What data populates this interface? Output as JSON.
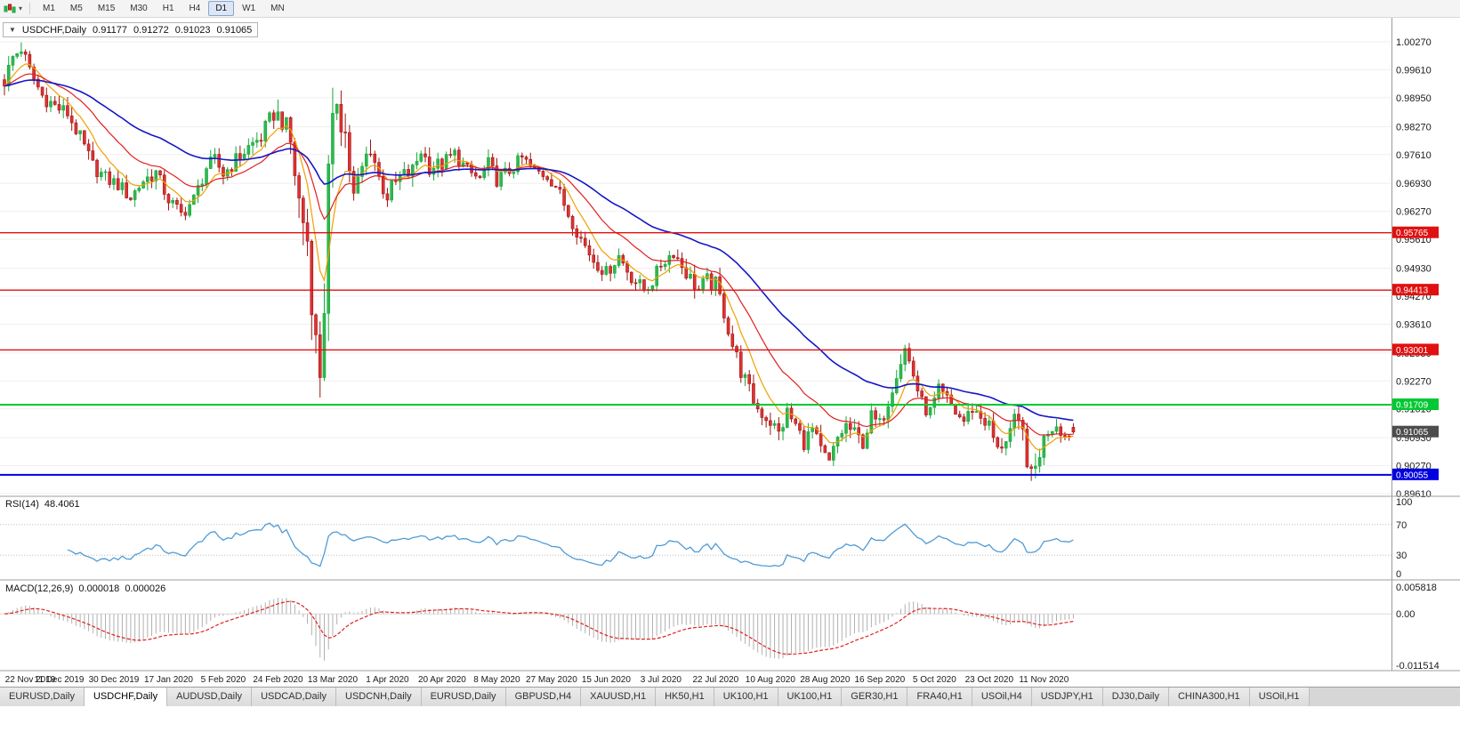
{
  "toolbar": {
    "timeframes": [
      {
        "label": "M1",
        "active": false
      },
      {
        "label": "M5",
        "active": false
      },
      {
        "label": "M15",
        "active": false
      },
      {
        "label": "M30",
        "active": false
      },
      {
        "label": "H1",
        "active": false
      },
      {
        "label": "H4",
        "active": false
      },
      {
        "label": "D1",
        "active": true
      },
      {
        "label": "W1",
        "active": false
      },
      {
        "label": "MN",
        "active": false
      }
    ]
  },
  "chart_data": {
    "type": "candlestick",
    "title": "USDCHF,Daily",
    "symbol": "USDCHF",
    "timeframe": "Daily",
    "last_ohlc": {
      "open": "0.91177",
      "high": "0.91272",
      "low": "0.91023",
      "close": "0.91065"
    },
    "bars": 255,
    "colors": {
      "up_stroke": "#18a83c",
      "up_fill": "#2eb84e",
      "down_stroke": "#9e1414",
      "down_fill": "#e03232"
    },
    "close_path_anchors": [
      [
        0,
        0.9935
      ],
      [
        2,
        0.999
      ],
      [
        4,
        1.0012
      ],
      [
        6,
        0.9958
      ],
      [
        9,
        0.99
      ],
      [
        12,
        0.9875
      ],
      [
        15,
        0.9858
      ],
      [
        18,
        0.98
      ],
      [
        21,
        0.9735
      ],
      [
        24,
        0.9705
      ],
      [
        27,
        0.969
      ],
      [
        30,
        0.966
      ],
      [
        33,
        0.97
      ],
      [
        36,
        0.9718
      ],
      [
        39,
        0.9655
      ],
      [
        42,
        0.962
      ],
      [
        45,
        0.9655
      ],
      [
        48,
        0.973
      ],
      [
        50,
        0.9748
      ],
      [
        52,
        0.9715
      ],
      [
        55,
        0.9748
      ],
      [
        58,
        0.9778
      ],
      [
        61,
        0.9802
      ],
      [
        64,
        0.9858
      ],
      [
        66,
        0.9845
      ],
      [
        68,
        0.9788
      ],
      [
        70,
        0.965
      ],
      [
        72,
        0.956
      ],
      [
        74,
        0.931
      ],
      [
        75,
        0.9255
      ],
      [
        76,
        0.942
      ],
      [
        77,
        0.97
      ],
      [
        79,
        0.9905
      ],
      [
        81,
        0.981
      ],
      [
        83,
        0.9655
      ],
      [
        85,
        0.9725
      ],
      [
        87,
        0.9785
      ],
      [
        89,
        0.9705
      ],
      [
        91,
        0.9665
      ],
      [
        94,
        0.9705
      ],
      [
        97,
        0.9722
      ],
      [
        99,
        0.9772
      ],
      [
        101,
        0.9732
      ],
      [
        104,
        0.9738
      ],
      [
        107,
        0.9762
      ],
      [
        110,
        0.9722
      ],
      [
        113,
        0.9702
      ],
      [
        115,
        0.9738
      ],
      [
        117,
        0.9702
      ],
      [
        120,
        0.9722
      ],
      [
        123,
        0.9752
      ],
      [
        126,
        0.9722
      ],
      [
        129,
        0.9712
      ],
      [
        131,
        0.9688
      ],
      [
        134,
        0.9622
      ],
      [
        137,
        0.9562
      ],
      [
        140,
        0.9512
      ],
      [
        143,
        0.9482
      ],
      [
        146,
        0.9522
      ],
      [
        149,
        0.9472
      ],
      [
        152,
        0.9442
      ],
      [
        154,
        0.9462
      ],
      [
        156,
        0.9502
      ],
      [
        159,
        0.9532
      ],
      [
        162,
        0.9482
      ],
      [
        165,
        0.9442
      ],
      [
        167,
        0.9462
      ],
      [
        169,
        0.9452
      ],
      [
        171,
        0.9392
      ],
      [
        173,
        0.9312
      ],
      [
        175,
        0.9252
      ],
      [
        177,
        0.9202
      ],
      [
        179,
        0.9162
      ],
      [
        182,
        0.9132
      ],
      [
        184,
        0.9102
      ],
      [
        186,
        0.9152
      ],
      [
        188,
        0.9122
      ],
      [
        190,
        0.9082
      ],
      [
        192,
        0.9112
      ],
      [
        194,
        0.9062
      ],
      [
        196,
        0.9032
      ],
      [
        198,
        0.9092
      ],
      [
        200,
        0.9122
      ],
      [
        202,
        0.9102
      ],
      [
        204,
        0.9082
      ],
      [
        206,
        0.9142
      ],
      [
        208,
        0.9122
      ],
      [
        210,
        0.9182
      ],
      [
        212,
        0.9252
      ],
      [
        214,
        0.9302
      ],
      [
        216,
        0.9242
      ],
      [
        218,
        0.9172
      ],
      [
        220,
        0.9152
      ],
      [
        222,
        0.9202
      ],
      [
        224,
        0.9182
      ],
      [
        226,
        0.9152
      ],
      [
        228,
        0.9132
      ],
      [
        230,
        0.9162
      ],
      [
        232,
        0.9142
      ],
      [
        234,
        0.9122
      ],
      [
        236,
        0.9062
      ],
      [
        238,
        0.9092
      ],
      [
        240,
        0.9132
      ],
      [
        242,
        0.9102
      ],
      [
        244,
        0.8992
      ],
      [
        245,
        0.9022
      ],
      [
        246,
        0.9062
      ],
      [
        248,
        0.9112
      ],
      [
        250,
        0.9127
      ],
      [
        252,
        0.9097
      ],
      [
        254,
        0.91065
      ]
    ],
    "volatility_anchors": [
      [
        0,
        0.0026
      ],
      [
        20,
        0.0024
      ],
      [
        50,
        0.0022
      ],
      [
        64,
        0.003
      ],
      [
        68,
        0.0048
      ],
      [
        72,
        0.0065
      ],
      [
        76,
        0.0085
      ],
      [
        80,
        0.007
      ],
      [
        84,
        0.0048
      ],
      [
        90,
        0.0034
      ],
      [
        100,
        0.0026
      ],
      [
        120,
        0.0022
      ],
      [
        140,
        0.0022
      ],
      [
        160,
        0.0022
      ],
      [
        170,
        0.003
      ],
      [
        178,
        0.0028
      ],
      [
        190,
        0.0024
      ],
      [
        205,
        0.0024
      ],
      [
        214,
        0.003
      ],
      [
        225,
        0.0022
      ],
      [
        240,
        0.0024
      ],
      [
        244,
        0.004
      ],
      [
        248,
        0.0026
      ],
      [
        254,
        0.0016
      ]
    ],
    "moving_averages": [
      {
        "period": 8,
        "color": "#f0a000"
      },
      {
        "period": 21,
        "color": "#e02020"
      },
      {
        "period": 50,
        "color": "#1616c8"
      }
    ],
    "price_tick_labels": [
      "1.00270",
      "0.99610",
      "0.98950",
      "0.98270",
      "0.97610",
      "0.96930",
      "0.96270",
      "0.95610",
      "0.94930",
      "0.94270",
      "0.93610",
      "0.92930",
      "0.92270",
      "0.91610",
      "0.90930",
      "0.90270",
      "0.89610"
    ],
    "time_labels": [
      {
        "label": "22 Nov 2019",
        "i": 0
      },
      {
        "label": "11 Dec 2019",
        "i": 13
      },
      {
        "label": "30 Dec 2019",
        "i": 26
      },
      {
        "label": "17 Jan 2020",
        "i": 39
      },
      {
        "label": "5 Feb 2020",
        "i": 52
      },
      {
        "label": "24 Feb 2020",
        "i": 65
      },
      {
        "label": "13 Mar 2020",
        "i": 78
      },
      {
        "label": "1 Apr 2020",
        "i": 91
      },
      {
        "label": "20 Apr 2020",
        "i": 104
      },
      {
        "label": "8 May 2020",
        "i": 117
      },
      {
        "label": "27 May 2020",
        "i": 130
      },
      {
        "label": "15 Jun 2020",
        "i": 143
      },
      {
        "label": "3 Jul 2020",
        "i": 156
      },
      {
        "label": "22 Jul 2020",
        "i": 169
      },
      {
        "label": "10 Aug 2020",
        "i": 182
      },
      {
        "label": "28 Aug 2020",
        "i": 195
      },
      {
        "label": "16 Sep 2020",
        "i": 208
      },
      {
        "label": "5 Oct 2020",
        "i": 221
      },
      {
        "label": "23 Oct 2020",
        "i": 234
      },
      {
        "label": "11 Nov 2020",
        "i": 247
      }
    ],
    "horizontal_lines": [
      {
        "label": "0.95765",
        "price": 0.95765,
        "color": "#e01010",
        "width": 1.4
      },
      {
        "label": "0.94413",
        "price": 0.94413,
        "color": "#e01010",
        "width": 1.4
      },
      {
        "label": "0.93001",
        "price": 0.93001,
        "color": "#e01010",
        "width": 1.4
      },
      {
        "label": "0.91709",
        "price": 0.91709,
        "color": "#00c832",
        "width": 2
      },
      {
        "label": "0.90055",
        "price": 0.90055,
        "color": "#0000e0",
        "width": 2
      }
    ],
    "current_price_tag": {
      "label": "0.91065",
      "price": 0.91065,
      "color": "#4d4d4d"
    },
    "rsi": {
      "name": "RSI(14)",
      "value": "48.4061",
      "line_color": "#4f9bd6",
      "levels": [
        {
          "label": "100",
          "value": 100
        },
        {
          "label": "70",
          "value": 70
        },
        {
          "label": "30",
          "value": 30
        },
        {
          "label": "0",
          "value": 0
        }
      ]
    },
    "macd": {
      "name": "MACD(12,26,9)",
      "value_main": "0.000018",
      "value_signal": "0.000026",
      "hist_color": "#b0b0b0",
      "signal_color": "#e02020",
      "axis_labels": [
        {
          "label": "0.005818",
          "value": 0.005818
        },
        {
          "label": "0.00",
          "value": 0
        },
        {
          "label": "-0.011514",
          "value": -0.011514
        }
      ]
    }
  },
  "tabs": [
    {
      "label": "EURUSD,Daily",
      "active": false
    },
    {
      "label": "USDCHF,Daily",
      "active": true
    },
    {
      "label": "AUDUSD,Daily",
      "active": false
    },
    {
      "label": "USDCAD,Daily",
      "active": false
    },
    {
      "label": "USDCNH,Daily",
      "active": false
    },
    {
      "label": "EURUSD,Daily",
      "active": false
    },
    {
      "label": "GBPUSD,H4",
      "active": false
    },
    {
      "label": "XAUUSD,H1",
      "active": false
    },
    {
      "label": "HK50,H1",
      "active": false
    },
    {
      "label": "UK100,H1",
      "active": false
    },
    {
      "label": "UK100,H1",
      "active": false
    },
    {
      "label": "GER30,H1",
      "active": false
    },
    {
      "label": "FRA40,H1",
      "active": false
    },
    {
      "label": "USOil,H4",
      "active": false
    },
    {
      "label": "USDJPY,H1",
      "active": false
    },
    {
      "label": "DJ30,Daily",
      "active": false
    },
    {
      "label": "CHINA300,H1",
      "active": false
    },
    {
      "label": "USOil,H1",
      "active": false
    }
  ]
}
